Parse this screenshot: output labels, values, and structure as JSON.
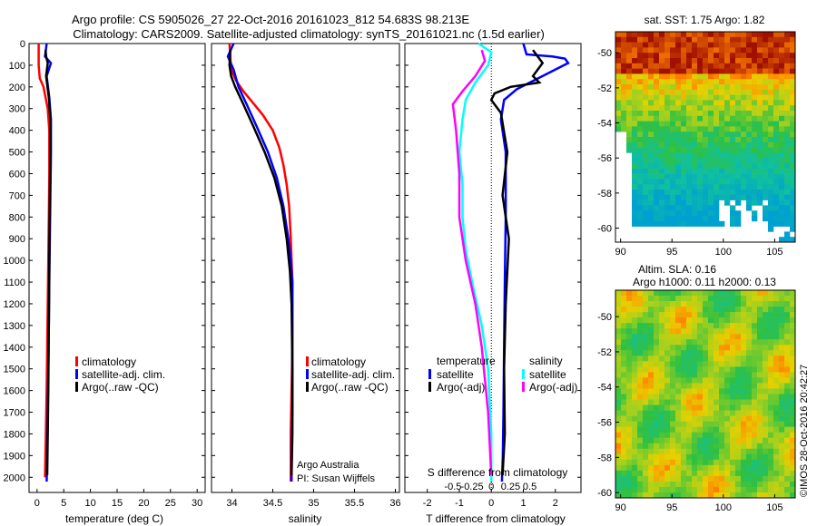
{
  "figure": {
    "title_line1": "Argo profile: CS 5905026_27 22-Oct-2016 20161023_812 54.683S 98.213E",
    "title_line2": "Climatology: CARS2009. Satellite-adjusted climatology: synTS_20161021.nc (1.5d earlier)",
    "credit": "©IMOS 28-Oct-2016 20:42:27"
  },
  "colors": {
    "climatology": "#ff0000",
    "satellite": "#0000ff",
    "argo": "#000000",
    "salinity_satellite": "#00ffff",
    "salinity_argo": "#ff00ff"
  },
  "chart_data": [
    {
      "type": "line",
      "id": "temperature",
      "xlabel": "temperature (deg C)",
      "ylabel": "",
      "xlim": [
        -1.5,
        31.5
      ],
      "ylim": [
        2070,
        0
      ],
      "xticks": [
        0,
        5,
        10,
        15,
        20,
        25,
        30
      ],
      "yticks": [
        0,
        100,
        200,
        300,
        400,
        500,
        600,
        700,
        800,
        900,
        1000,
        1100,
        1200,
        1300,
        1400,
        1500,
        1600,
        1700,
        1800,
        1900,
        2000
      ],
      "legend": [
        "climatology",
        "satellite-adj. clim.",
        "Argo(..raw -QC)"
      ],
      "series": [
        {
          "name": "climatology",
          "x": [
            0.3,
            0.3,
            0.5,
            1.2,
            2.0,
            2.3,
            2.3,
            2.2,
            2.0,
            1.8,
            1.5
          ],
          "y": [
            0,
            100,
            160,
            200,
            300,
            400,
            600,
            800,
            1200,
            1600,
            2000
          ]
        },
        {
          "name": "satellite-adj. clim.",
          "x": [
            1.8,
            1.5,
            2.6,
            1.8,
            2.3,
            2.6,
            2.6,
            2.5,
            2.4,
            2.3,
            2.2,
            2.1,
            2.0,
            1.9,
            1.8
          ],
          "y": [
            0,
            60,
            90,
            150,
            250,
            350,
            500,
            700,
            900,
            1100,
            1300,
            1500,
            1700,
            1900,
            2020
          ]
        },
        {
          "name": "Argo(..raw -QC)",
          "x": [
            1.6,
            1.7,
            2.0,
            1.7,
            2.2,
            2.5,
            2.5,
            2.4,
            2.3,
            2.2,
            2.1,
            2.0,
            1.9
          ],
          "y": [
            30,
            60,
            90,
            150,
            250,
            350,
            500,
            700,
            1000,
            1300,
            1600,
            1800,
            1990
          ]
        }
      ]
    },
    {
      "type": "line",
      "id": "salinity",
      "xlabel": "salinity",
      "ylabel": "",
      "xlim": [
        33.75,
        36.05
      ],
      "ylim": [
        2070,
        0
      ],
      "xticks": [
        34,
        34.5,
        35,
        35.5,
        36
      ],
      "legend": [
        "climatology",
        "satellite-adj. clim.",
        "Argo(..raw -QC)"
      ],
      "notes": [
        "Argo Australia",
        "PI: Susan Wijffels"
      ],
      "series": [
        {
          "name": "climatology",
          "x": [
            33.97,
            33.99,
            34.05,
            34.14,
            34.25,
            34.38,
            34.5,
            34.58,
            34.63,
            34.67,
            34.7,
            34.72,
            34.73,
            34.74,
            34.74,
            34.74,
            34.73,
            34.72,
            34.72
          ],
          "y": [
            0,
            120,
            170,
            220,
            270,
            330,
            400,
            480,
            560,
            650,
            750,
            900,
            1000,
            1100,
            1250,
            1400,
            1600,
            1800,
            2020
          ]
        },
        {
          "name": "satellite-adj. clim.",
          "x": [
            34.02,
            33.95,
            34.02,
            34.08,
            34.18,
            34.3,
            34.44,
            34.55,
            34.63,
            34.69,
            34.72,
            34.74,
            34.74,
            34.74,
            34.74,
            34.73,
            34.73
          ],
          "y": [
            0,
            60,
            120,
            200,
            280,
            380,
            500,
            620,
            750,
            900,
            1000,
            1100,
            1300,
            1500,
            1700,
            1900,
            2020
          ]
        },
        {
          "name": "Argo(..raw -QC)",
          "x": [
            33.98,
            33.97,
            33.99,
            34.04,
            34.14,
            34.26,
            34.4,
            34.52,
            34.61,
            34.67,
            34.71,
            34.73,
            34.74,
            34.74,
            34.73
          ],
          "y": [
            30,
            100,
            150,
            200,
            280,
            380,
            500,
            620,
            750,
            900,
            1050,
            1200,
            1500,
            1800,
            1990
          ]
        }
      ]
    },
    {
      "type": "line",
      "id": "difference",
      "xlabel": "T difference from climatology",
      "xlabel_top": "S difference from climatology",
      "xlim": [
        -2.7,
        2.8
      ],
      "ylim": [
        2070,
        0
      ],
      "xticks": [
        -2,
        -1,
        0,
        1,
        2
      ],
      "top_ticklabels": [
        "-0.5",
        "-0.25",
        "0",
        "0.25",
        "0.5"
      ],
      "legend_title_left": "temperature",
      "legend_title_right": "salinity",
      "legend": [
        "satellite",
        "Argo(-adj)",
        "satellite",
        "Argo(-adj)"
      ],
      "series": [
        {
          "name": "satellite",
          "quantity": "temperature",
          "x": [
            1.0,
            1.1,
            1.9,
            2.3,
            2.4,
            1.6,
            0.8,
            0.4,
            0.3,
            0.45,
            0.45,
            0.42,
            0.4,
            0.38,
            0.36,
            0.33
          ],
          "y": [
            0,
            50,
            60,
            70,
            90,
            150,
            210,
            260,
            350,
            500,
            800,
            1100,
            1400,
            1700,
            1900,
            2020
          ]
        },
        {
          "name": "Argo(-adj)",
          "quantity": "temperature",
          "x": [
            1.3,
            1.4,
            1.6,
            1.3,
            1.5,
            0.6,
            0.1,
            0.0,
            0.3,
            0.5,
            0.35,
            0.55,
            0.45,
            0.4,
            0.42,
            0.35
          ],
          "y": [
            30,
            50,
            90,
            150,
            180,
            200,
            230,
            260,
            320,
            500,
            700,
            900,
            1200,
            1500,
            1800,
            1990
          ]
        },
        {
          "name": "satellite",
          "quantity": "salinity",
          "x": [
            -0.4,
            0.0,
            -0.1,
            -0.5,
            -0.8,
            -0.9,
            -1.0,
            -0.9,
            -0.9,
            -0.8,
            -0.6,
            -0.3,
            -0.1,
            0.0,
            0.0
          ],
          "y": [
            0,
            40,
            100,
            180,
            260,
            350,
            500,
            650,
            800,
            950,
            1100,
            1300,
            1500,
            1800,
            2020
          ]
        },
        {
          "name": "Argo(-adj)",
          "quantity": "salinity",
          "x": [
            -0.3,
            -0.2,
            -0.5,
            -0.9,
            -1.2,
            -1.1,
            -1.0,
            -1.0,
            -0.8,
            -0.5,
            -0.3,
            -0.1,
            0.0
          ],
          "y": [
            30,
            80,
            150,
            220,
            280,
            400,
            600,
            800,
            1000,
            1200,
            1400,
            1700,
            1990
          ]
        }
      ]
    },
    {
      "type": "heatmap",
      "id": "sst-map",
      "title": "sat. SST: 1.75  Argo: 1.82",
      "xlim": [
        89.5,
        107
      ],
      "ylim": [
        -60.8,
        -48.8
      ],
      "xticks": [
        90,
        95,
        100,
        105
      ],
      "yticks": [
        -50,
        -52,
        -54,
        -56,
        -58,
        -60
      ]
    },
    {
      "type": "heatmap",
      "id": "sla-map",
      "title_line1": "Altim. SLA: 0.16",
      "title_line2": "Argo h1000: 0.11  h2000: 0.13",
      "xlim": [
        89.5,
        107
      ],
      "ylim": [
        -60.3,
        -48.5
      ],
      "xticks": [
        90,
        95,
        100,
        105
      ],
      "yticks": [
        -50,
        -52,
        -54,
        -56,
        -58,
        -60
      ]
    }
  ]
}
